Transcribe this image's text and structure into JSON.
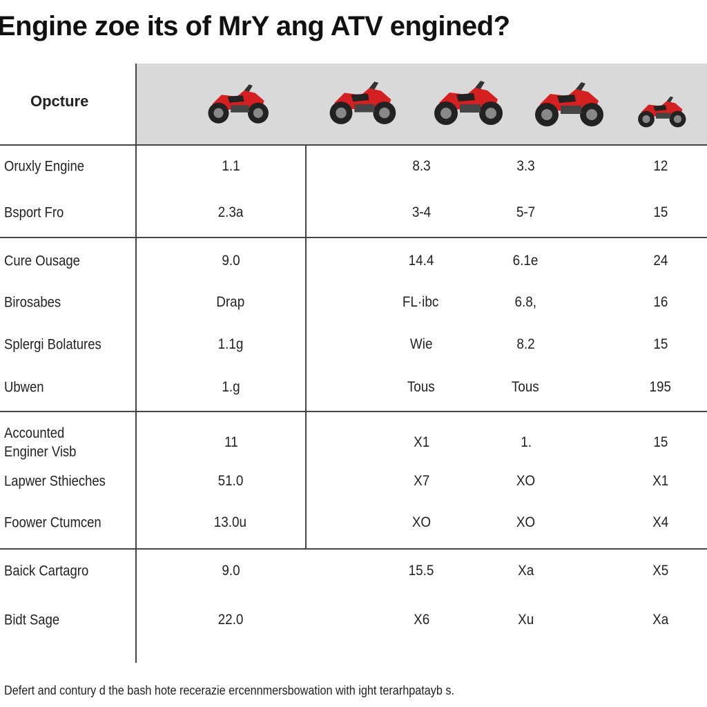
{
  "title": "Engine zoe its of MrY ang ATV engined?",
  "header": {
    "label": "Opcture"
  },
  "table": {
    "groups": [
      [
        [
          "Oruxly Engine",
          "1.1",
          "8.3",
          "3.3",
          "12"
        ],
        [
          "Bsport Fro",
          "2.3a",
          "3-4",
          "5-7",
          "15"
        ]
      ],
      [
        [
          "Cure Ousage",
          "9.0",
          "14.4",
          "6.1e",
          "24"
        ],
        [
          "Birosabes",
          "Drap",
          "FL·ibc",
          "6.8,",
          "16"
        ],
        [
          "Splergi Bolatures",
          "1.1g",
          "Wie",
          "8.2",
          "15"
        ],
        [
          "Ubwen",
          "1.g",
          "Tous",
          "Tous",
          "195"
        ]
      ],
      [
        [
          "Accounted Enginer Visb",
          "11",
          "X1",
          "1.",
          "15"
        ],
        [
          "Lapwer Sthieches",
          "51.0",
          "X7",
          "XO",
          "X1"
        ],
        [
          "Foower Ctumcen",
          "13.0u",
          "XO",
          "XO",
          "X4"
        ]
      ],
      [
        [
          "Baick Cartagro",
          "9.0",
          "15.5",
          "Xa",
          "X5"
        ],
        [
          "Bidt Sage",
          "22.0",
          "X6",
          "Xu",
          "Xa"
        ]
      ]
    ]
  },
  "footer": "Defert and contury d the bash hote recerazie ercennmersbowation with ight terarhpatayb s."
}
